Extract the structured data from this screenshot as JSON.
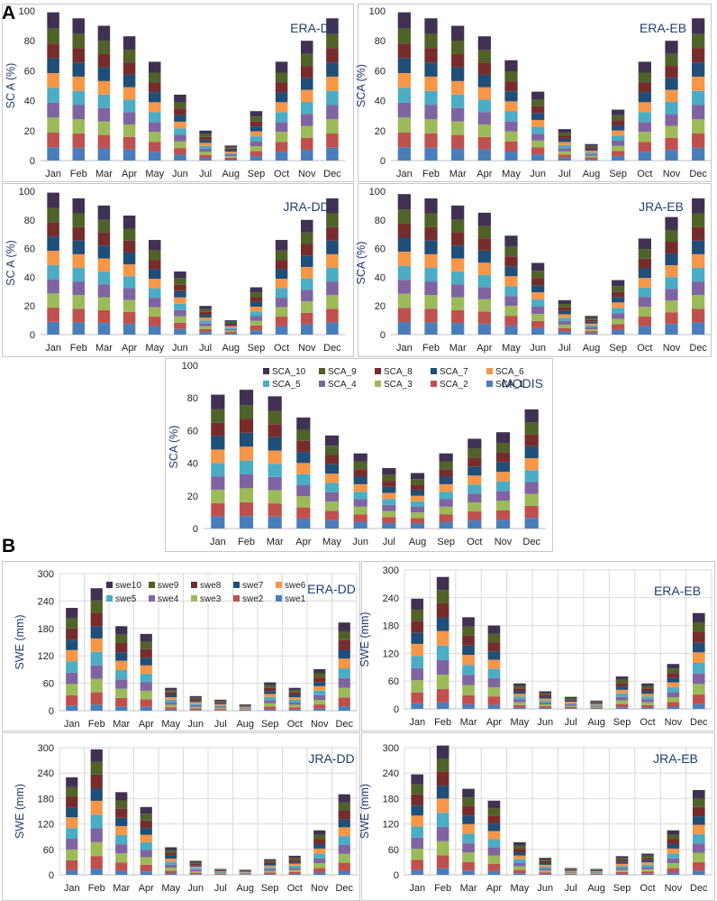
{
  "figure": {
    "panel_labels": [
      "A",
      "B"
    ],
    "palette": [
      "#4a7ebb",
      "#c0504d",
      "#9bbb59",
      "#8064a2",
      "#4bacc6",
      "#f79646",
      "#1f4e79",
      "#772c2c",
      "#4f6228",
      "#403152"
    ]
  },
  "chart_data": [
    {
      "type": "bar",
      "stacked": true,
      "panel": "A",
      "title": "ERA-DD",
      "xlabel": "",
      "ylabel": "SC A (%)",
      "ylim": [
        0,
        100
      ],
      "yticks": [
        0,
        20,
        40,
        60,
        80,
        100
      ],
      "categories": [
        "Jan",
        "Feb",
        "Mar",
        "Apr",
        "May",
        "Jun",
        "Jul",
        "Aug",
        "Sep",
        "Oct",
        "Nov",
        "Dec"
      ],
      "series_names": [
        "SCA_1",
        "SCA_2",
        "SCA_3",
        "SCA_4",
        "SCA_5",
        "SCA_6",
        "SCA_7",
        "SCA_8",
        "SCA_9",
        "SCA_10"
      ],
      "totals": [
        99,
        95,
        90,
        83,
        66,
        44,
        20,
        10,
        33,
        66,
        80,
        95
      ],
      "legend": false
    },
    {
      "type": "bar",
      "stacked": true,
      "panel": "A",
      "title": "ERA-EB",
      "xlabel": "",
      "ylabel": "SCA (%)",
      "ylim": [
        0,
        100
      ],
      "yticks": [
        0,
        20,
        40,
        60,
        80,
        100
      ],
      "categories": [
        "Jan",
        "Feb",
        "Mar",
        "Apr",
        "May",
        "Jun",
        "Jul",
        "Aug",
        "Sep",
        "Oct",
        "Nov",
        "Dec"
      ],
      "series_names": [
        "SCA_1",
        "SCA_2",
        "SCA_3",
        "SCA_4",
        "SCA_5",
        "SCA_6",
        "SCA_7",
        "SCA_8",
        "SCA_9",
        "SCA_10"
      ],
      "totals": [
        99,
        95,
        90,
        83,
        67,
        46,
        21,
        11,
        34,
        66,
        80,
        95
      ],
      "legend": false
    },
    {
      "type": "bar",
      "stacked": true,
      "panel": "A",
      "title": "JRA-DD",
      "xlabel": "",
      "ylabel": "SC A (%)",
      "ylim": [
        0,
        100
      ],
      "yticks": [
        0,
        20,
        40,
        60,
        80,
        100
      ],
      "categories": [
        "Jan",
        "Feb",
        "Mar",
        "Apr",
        "May",
        "Jun",
        "Jul",
        "Aug",
        "Sep",
        "Oct",
        "Nov",
        "Dec"
      ],
      "series_names": [
        "SCA_1",
        "SCA_2",
        "SCA_3",
        "SCA_4",
        "SCA_5",
        "SCA_6",
        "SCA_7",
        "SCA_8",
        "SCA_9",
        "SCA_10"
      ],
      "totals": [
        99,
        95,
        90,
        83,
        66,
        44,
        20,
        10,
        33,
        66,
        80,
        95
      ],
      "legend": false
    },
    {
      "type": "bar",
      "stacked": true,
      "panel": "A",
      "title": "JRA-EB",
      "xlabel": "",
      "ylabel": "SCA (%)",
      "ylim": [
        0,
        100
      ],
      "yticks": [
        0,
        20,
        40,
        60,
        80,
        100
      ],
      "categories": [
        "Jan",
        "Feb",
        "Mar",
        "Apr",
        "May",
        "Jun",
        "Jul",
        "Aug",
        "Sep",
        "Oct",
        "Nov",
        "Dec"
      ],
      "series_names": [
        "SCA_1",
        "SCA_2",
        "SCA_3",
        "SCA_4",
        "SCA_5",
        "SCA_6",
        "SCA_7",
        "SCA_8",
        "SCA_9",
        "SCA_10"
      ],
      "totals": [
        98,
        95,
        90,
        85,
        69,
        50,
        24,
        13,
        38,
        67,
        82,
        95
      ],
      "legend": false
    },
    {
      "type": "bar",
      "stacked": true,
      "panel": "A",
      "title": "MODIS",
      "xlabel": "",
      "ylabel": "SCA (%)",
      "ylim": [
        0,
        100
      ],
      "yticks": [
        0,
        20,
        40,
        60,
        80,
        100
      ],
      "categories": [
        "Jan",
        "Feb",
        "Mar",
        "Apr",
        "May",
        "Jun",
        "Jul",
        "Aug",
        "Sep",
        "Oct",
        "Nov",
        "Dec"
      ],
      "series_names": [
        "SCA_1",
        "SCA_2",
        "SCA_3",
        "SCA_4",
        "SCA_5",
        "SCA_6",
        "SCA_7",
        "SCA_8",
        "SCA_9",
        "SCA_10"
      ],
      "totals": [
        82,
        85,
        81,
        68,
        57,
        46,
        37,
        34,
        46,
        55,
        59,
        73
      ],
      "legend": true,
      "legend_labels": [
        "SCA_10",
        "SCA_9",
        "SCA_8",
        "SCA_7",
        "SCA_6",
        "SCA_5",
        "SCA_4",
        "SCA_3",
        "SCA_2",
        "SCA_1"
      ]
    },
    {
      "type": "bar",
      "stacked": true,
      "panel": "B",
      "title": "ERA-DD",
      "xlabel": "",
      "ylabel": "SWE (mm)",
      "ylim": [
        0,
        300
      ],
      "yticks": [
        0,
        60,
        120,
        180,
        240,
        300
      ],
      "categories": [
        "Jan",
        "Feb",
        "Mar",
        "Apr",
        "May",
        "Jun",
        "Jul",
        "Aug",
        "Sep",
        "Oct",
        "Nov",
        "Dec"
      ],
      "series_names": [
        "swe1",
        "swe2",
        "swe3",
        "swe4",
        "swe5",
        "swe6",
        "swe7",
        "swe8",
        "swe9",
        "swe10"
      ],
      "totals": [
        225,
        268,
        185,
        168,
        50,
        32,
        24,
        14,
        62,
        50,
        91,
        193
      ],
      "legend": true,
      "legend_labels": [
        "swe10",
        "swe9",
        "swe8",
        "swe7",
        "swe6",
        "swe5",
        "swe4",
        "swe3",
        "swe2",
        "swe1"
      ]
    },
    {
      "type": "bar",
      "stacked": true,
      "panel": "B",
      "title": "ERA-EB",
      "xlabel": "",
      "ylabel": "SWE (mm)",
      "ylim": [
        0,
        300
      ],
      "yticks": [
        0,
        60,
        120,
        180,
        240,
        300
      ],
      "categories": [
        "Jan",
        "Feb",
        "Mar",
        "Apr",
        "May",
        "Jun",
        "Jul",
        "Aug",
        "Sep",
        "Oct",
        "Nov",
        "Dec"
      ],
      "series_names": [
        "swe1",
        "swe2",
        "swe3",
        "swe4",
        "swe5",
        "swe6",
        "swe7",
        "swe8",
        "swe9",
        "swe10"
      ],
      "totals": [
        238,
        285,
        198,
        180,
        55,
        38,
        26,
        18,
        70,
        55,
        97,
        207
      ],
      "legend": false
    },
    {
      "type": "bar",
      "stacked": true,
      "panel": "B",
      "title": "JRA-DD",
      "xlabel": "",
      "ylabel": "SWE (mm)",
      "ylim": [
        0,
        300
      ],
      "yticks": [
        0,
        60,
        120,
        180,
        240,
        300
      ],
      "categories": [
        "Jan",
        "Feb",
        "Mar",
        "Apr",
        "May",
        "Jun",
        "Jul",
        "Aug",
        "Sep",
        "Oct",
        "Nov",
        "Dec"
      ],
      "series_names": [
        "swe1",
        "swe2",
        "swe3",
        "swe4",
        "swe5",
        "swe6",
        "swe7",
        "swe8",
        "swe9",
        "swe10"
      ],
      "totals": [
        230,
        296,
        195,
        160,
        65,
        33,
        14,
        12,
        37,
        45,
        105,
        190
      ],
      "legend": false
    },
    {
      "type": "bar",
      "stacked": true,
      "panel": "B",
      "title": "JRA-EB",
      "xlabel": "",
      "ylabel": "SWE (mm)",
      "ylim": [
        0,
        300
      ],
      "yticks": [
        0,
        60,
        120,
        180,
        240,
        300
      ],
      "categories": [
        "Jan",
        "Feb",
        "Mar",
        "Apr",
        "May",
        "Jun",
        "Jul",
        "Aug",
        "Sep",
        "Oct",
        "Nov",
        "Dec"
      ],
      "series_names": [
        "swe1",
        "swe2",
        "swe3",
        "swe4",
        "swe5",
        "swe6",
        "swe7",
        "swe8",
        "swe9",
        "swe10"
      ],
      "totals": [
        237,
        305,
        203,
        175,
        77,
        40,
        16,
        14,
        44,
        50,
        105,
        200
      ],
      "legend": false
    }
  ]
}
